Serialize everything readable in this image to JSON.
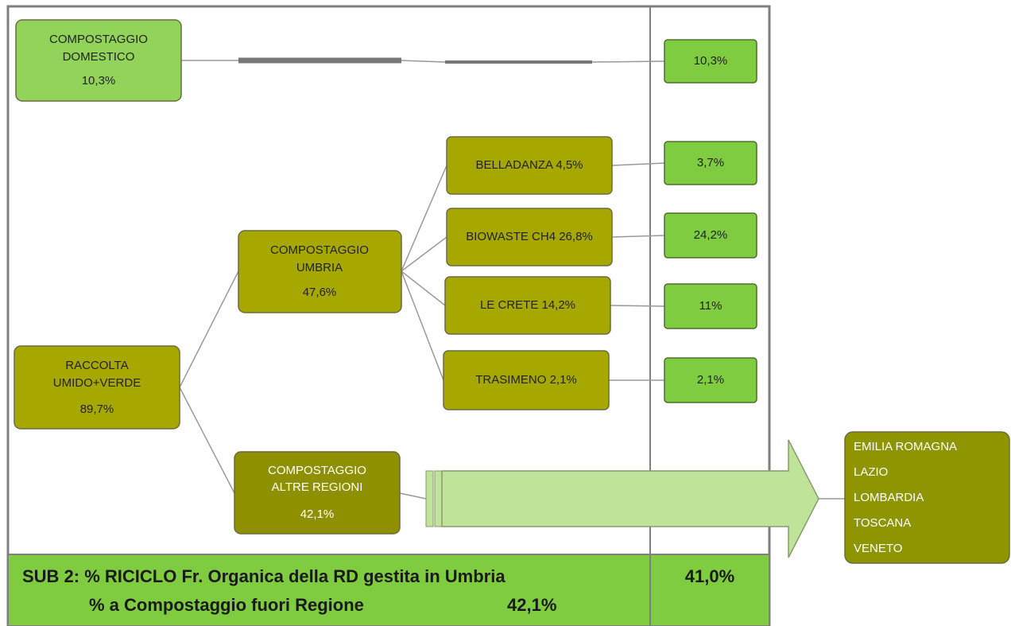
{
  "nodes": {
    "domestico": {
      "lines": [
        "COMPOSTAGGIO",
        "DOMESTICO"
      ],
      "value": "10,3%"
    },
    "raccolta": {
      "lines": [
        "RACCOLTA",
        "UMIDO+VERDE"
      ],
      "value": "89,7%"
    },
    "umbria": {
      "lines": [
        "COMPOSTAGGIO",
        "UMBRIA"
      ],
      "value": "47,6%"
    },
    "altre": {
      "lines": [
        "COMPOSTAGGIO",
        "ALTRE REGIONI"
      ],
      "value": "42,1%"
    }
  },
  "plants": [
    "BELLADANZA 4,5%",
    "BIOWASTE CH4 26,8%",
    "LE CRETE 14,2%",
    "TRASIMENO 2,1%"
  ],
  "results": [
    "10,3%",
    "3,7%",
    "24,2%",
    "11%",
    "2,1%"
  ],
  "regions": [
    "EMILIA ROMAGNA",
    "LAZIO",
    "LOMBARDIA",
    "TOSCANA",
    "VENETO"
  ],
  "footer": {
    "line1": "SUB 2: % RICICLO Fr. Organica della RD gestita in Umbria",
    "line2": "% a Compostaggio fuori Regione",
    "line2_value": "42,1%",
    "total": "41,0%"
  }
}
